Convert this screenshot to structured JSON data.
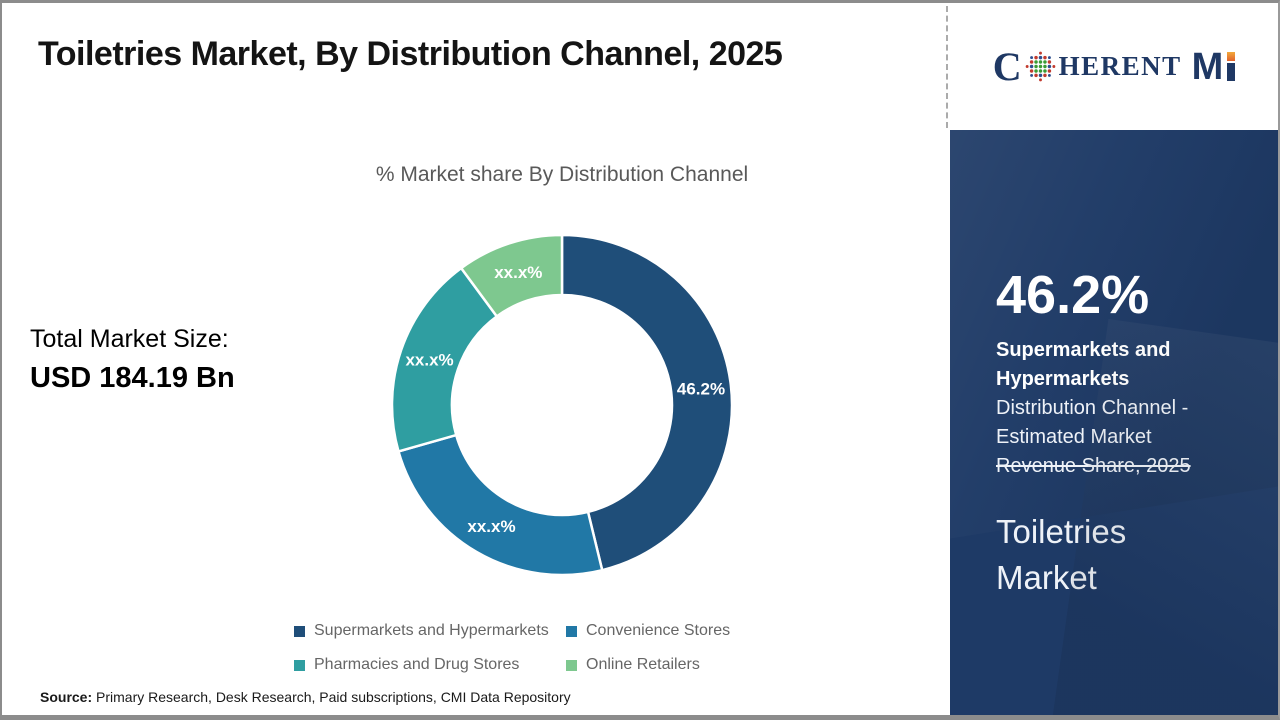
{
  "title": "Toiletries Market, By Distribution Channel, 2025",
  "logo": {
    "text": "COHERENT MI",
    "serif_c": "C",
    "serif_rest": "HERENT",
    "bold_m": "M",
    "globe_icon": "dotted-globe-icon",
    "navy": "#1F3864",
    "orange": "#E8862B"
  },
  "chart_data": {
    "type": "pie",
    "donut": true,
    "title": "% Market share By Distribution Channel",
    "categories": [
      "Supermarkets and Hypermarkets",
      "Convenience Stores",
      "Pharmacies and Drug Stores",
      "Online Retailers"
    ],
    "values": [
      46.2,
      24.4,
      19.3,
      10.1
    ],
    "slice_labels": [
      "46.2%",
      "xx.x%",
      "xx.x%",
      "xx.x%"
    ],
    "colors": [
      "#1F4E79",
      "#2178A6",
      "#2F9EA1",
      "#7EC88F"
    ],
    "legend_position": "bottom",
    "start_angle_deg": 0,
    "direction": "clockwise"
  },
  "total_market": {
    "label": "Total Market Size:",
    "value": "USD 184.19 Bn"
  },
  "sidebar": {
    "bg_color": "#1E3A66",
    "stat_value": "46.2%",
    "stat_segment_line1": "Supermarkets and",
    "stat_segment_line2": "Hypermarkets",
    "desc_line1": "Distribution Channel -",
    "desc_line2": "Estimated Market",
    "desc_line3_struck": "Revenue Share, 2025",
    "report_title_line1": "Toiletries",
    "report_title_line2": "Market"
  },
  "source": {
    "label": "Source:",
    "text": " Primary Research, Desk Research, Paid subscriptions, CMI Data Repository"
  }
}
